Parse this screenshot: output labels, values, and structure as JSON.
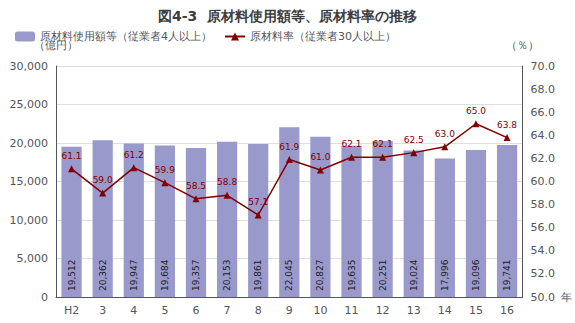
{
  "chart_data": {
    "type": "bar",
    "title": "図4-3  原材料使用額等、原材料率の推移",
    "xlabel": "年",
    "ylabel": "（億円）",
    "y2label": "（％）",
    "categories": [
      "H2",
      "3",
      "4",
      "5",
      "6",
      "7",
      "8",
      "9",
      "10",
      "11",
      "12",
      "13",
      "14",
      "15",
      "16"
    ],
    "series": [
      {
        "name": "原材料使用額等（従業者4人以上）",
        "type": "bar",
        "color": "#9999cc",
        "values": [
          19512,
          20362,
          19947,
          19684,
          19357,
          20153,
          19861,
          22045,
          20827,
          19635,
          20251,
          19024,
          17996,
          19096,
          19741
        ],
        "value_labels": [
          "19,512",
          "20,362",
          "19,947",
          "19,684",
          "19,357",
          "20,153",
          "19,861",
          "22,045",
          "20,827",
          "19,635",
          "20,251",
          "19,024",
          "17,996",
          "19,096",
          "19,741"
        ]
      },
      {
        "name": "原材料率（従業者30人以上）",
        "type": "line",
        "axis": "y2",
        "color": "#800000",
        "marker": "triangle",
        "values": [
          61.1,
          59.0,
          61.2,
          59.9,
          58.5,
          58.8,
          57.1,
          61.9,
          61.0,
          62.1,
          62.1,
          62.5,
          63.0,
          65.0,
          63.8
        ],
        "value_labels": [
          "61.1",
          "59.0",
          "61.2",
          "59.9",
          "58.5",
          "58.8",
          "57.1",
          "61.9",
          "61.0",
          "62.1",
          "62.1",
          "62.5",
          "63.0",
          "65.0",
          "63.8"
        ]
      }
    ],
    "ylim": [
      0,
      30000
    ],
    "yticks": [
      0,
      {
        "value": 5000,
        "label": "5,000"
      },
      {
        "value": 10000,
        "label": "10,000"
      },
      {
        "value": 15000,
        "label": "15,000"
      },
      {
        "value": 20000,
        "label": "20,000"
      },
      {
        "value": 25000,
        "label": "25,000"
      },
      {
        "value": 30000,
        "label": "30,000"
      }
    ],
    "y2lim": [
      50.0,
      70.0
    ],
    "y2ticks": [
      {
        "value": 50.0,
        "label": "50.0"
      },
      {
        "value": 52.0,
        "label": "52.0"
      },
      {
        "value": 54.0,
        "label": "54.0"
      },
      {
        "value": 56.0,
        "label": "56.0"
      },
      {
        "value": 58.0,
        "label": "58.0"
      },
      {
        "value": 60.0,
        "label": "60.0"
      },
      {
        "value": 62.0,
        "label": "62.0"
      },
      {
        "value": 64.0,
        "label": "64.0"
      },
      {
        "value": 66.0,
        "label": "66.0"
      },
      {
        "value": 68.0,
        "label": "68.0"
      },
      {
        "value": 70.0,
        "label": "70.0"
      }
    ],
    "grid": true,
    "legend": "upper left",
    "data_labels": true
  }
}
